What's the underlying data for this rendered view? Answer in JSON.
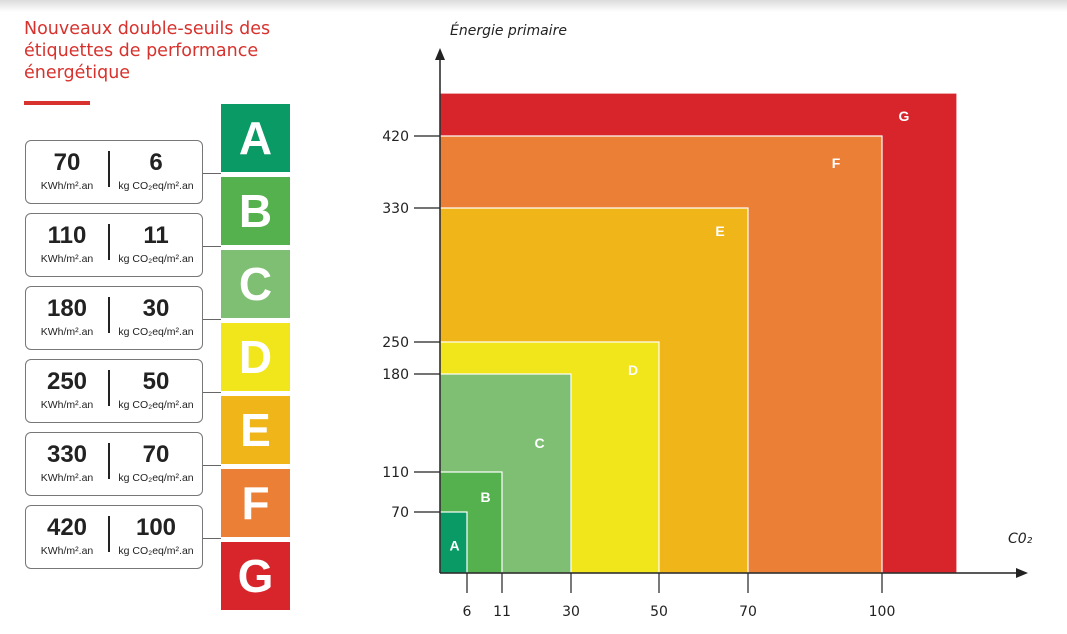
{
  "header": {
    "title_lines": [
      "Nouveaux double-seuils des",
      "étiquettes de performance",
      "énergétique"
    ]
  },
  "grades": [
    {
      "label": "A",
      "color": "#0a9a66"
    },
    {
      "label": "B",
      "color": "#55b04e"
    },
    {
      "label": "C",
      "color": "#7fbf73"
    },
    {
      "label": "D",
      "color": "#f1e51b"
    },
    {
      "label": "E",
      "color": "#f0b619"
    },
    {
      "label": "F",
      "color": "#ea7f35"
    },
    {
      "label": "G",
      "color": "#d8242b"
    }
  ],
  "thresholds": [
    {
      "energy": "70",
      "energy_unit": "KWh/m².an",
      "co2": "6",
      "co2_unit": "kg CO₂eq/m².an"
    },
    {
      "energy": "110",
      "energy_unit": "KWh/m².an",
      "co2": "11",
      "co2_unit": "kg CO₂eq/m².an"
    },
    {
      "energy": "180",
      "energy_unit": "KWh/m².an",
      "co2": "30",
      "co2_unit": "kg CO₂eq/m².an"
    },
    {
      "energy": "250",
      "energy_unit": "KWh/m².an",
      "co2": "50",
      "co2_unit": "kg CO₂eq/m².an"
    },
    {
      "energy": "330",
      "energy_unit": "KWh/m².an",
      "co2": "70",
      "co2_unit": "kg CO₂eq/m².an"
    },
    {
      "energy": "420",
      "energy_unit": "KWh/m².an",
      "co2": "100",
      "co2_unit": "kg CO₂eq/m².an"
    }
  ],
  "chart_data": {
    "type": "area",
    "ylabel": "Énergie primaire",
    "xlabel": "C0₂",
    "x_ticks": [
      6,
      11,
      30,
      50,
      70,
      100
    ],
    "y_ticks": [
      70,
      110,
      180,
      250,
      330,
      420
    ],
    "zones": [
      {
        "label": "A",
        "co2_max": 6,
        "energy_max": 70,
        "color": "#0a9a66"
      },
      {
        "label": "B",
        "co2_max": 11,
        "energy_max": 110,
        "color": "#55b04e"
      },
      {
        "label": "C",
        "co2_max": 30,
        "energy_max": 180,
        "color": "#7fbf73"
      },
      {
        "label": "D",
        "co2_max": 50,
        "energy_max": 250,
        "color": "#f1e51b"
      },
      {
        "label": "E",
        "co2_max": 70,
        "energy_max": 330,
        "color": "#f0b619"
      },
      {
        "label": "F",
        "co2_max": 100,
        "energy_max": 420,
        "color": "#ea7f35"
      },
      {
        "label": "G",
        "co2_max": null,
        "energy_max": null,
        "color": "#d8242b"
      }
    ]
  }
}
